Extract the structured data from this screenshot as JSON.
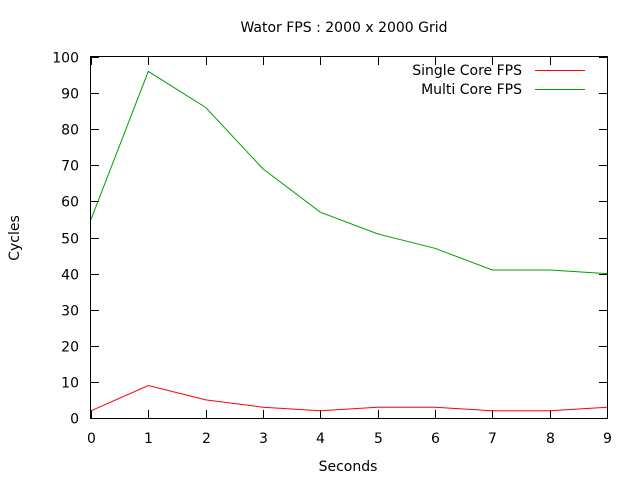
{
  "chart_data": {
    "type": "line",
    "title": "Wator FPS : 2000 x 2000 Grid",
    "xlabel": "Seconds",
    "ylabel": "Cycles",
    "x": [
      0,
      1,
      2,
      3,
      4,
      5,
      6,
      7,
      8,
      9
    ],
    "xlim": [
      0,
      9
    ],
    "ylim": [
      0,
      100
    ],
    "xticks": [
      0,
      1,
      2,
      3,
      4,
      5,
      6,
      7,
      8,
      9
    ],
    "yticks": [
      0,
      10,
      20,
      30,
      40,
      50,
      60,
      70,
      80,
      90,
      100
    ],
    "grid": false,
    "legend": "top-right",
    "series": [
      {
        "name": "Single Core FPS",
        "color": "#ff0000",
        "values": [
          2,
          9,
          5,
          3,
          2,
          3,
          3,
          2,
          2,
          3
        ]
      },
      {
        "name": "Multi Core FPS",
        "color": "#00a000",
        "values": [
          55,
          96,
          86,
          69,
          57,
          51,
          47,
          41,
          41,
          40
        ]
      }
    ]
  }
}
